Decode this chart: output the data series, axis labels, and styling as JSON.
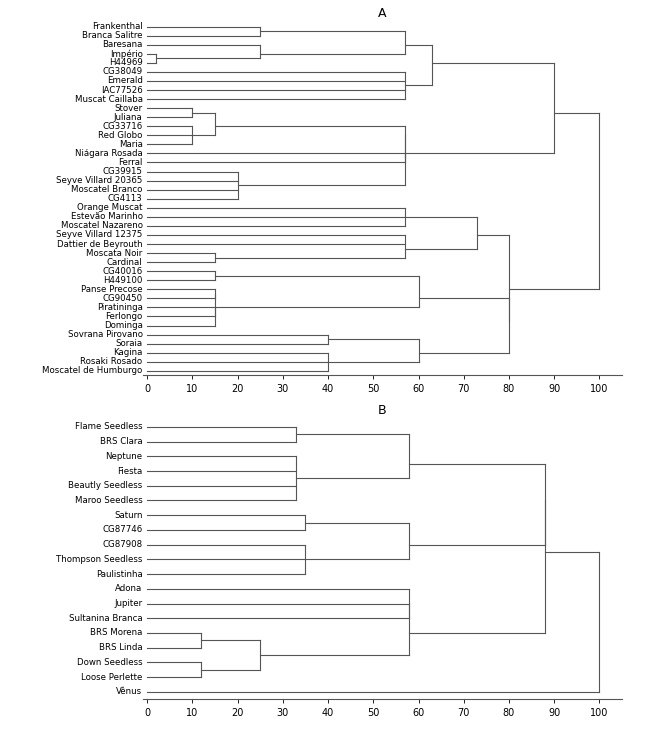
{
  "title_A": "A",
  "title_B": "B",
  "figsize": [
    6.48,
    7.36
  ],
  "dpi": 100,
  "taxa_A": [
    "Frankenthal",
    "Branca Salitre",
    "Baresana",
    "Império",
    "H44969",
    "CG38049",
    "Emerald",
    "IAC77526",
    "Muscat Caillaba",
    "Stover",
    "Juliana",
    "CG33716",
    "Red Globo",
    "Maria",
    "Niágara Rosada",
    "Ferral",
    "CG39915",
    "Seyve Villard 20365",
    "Moscatel Branco",
    "CG4113",
    "Orange Muscat",
    "Estevão Marinho",
    "Moscatel Nazareno",
    "Seyve Villard 12375",
    "Dattier de Beyrouth",
    "Moscata Noir",
    "Cardinal",
    "CG40016",
    "H449100",
    "Panse Precose",
    "CG90450",
    "Piratininga",
    "Ferlongo",
    "Dominga",
    "Sovrana Pirovano",
    "Soraia",
    "Kagina",
    "Rosaki Rosado",
    "Moscatel de Humburgo"
  ],
  "taxa_B": [
    "Flame Seedless",
    "BRS Clara",
    "Neptune",
    "Fiesta",
    "Beautly Seedless",
    "Maroo Seedless",
    "Saturn",
    "CG87746",
    "CG87908",
    "Thompson Seedless",
    "Paulistinha",
    "Adona",
    "Jupiter",
    "Sultanina Branca",
    "BRS Morena",
    "BRS Linda",
    "Down Seedless",
    "Loose Perlette",
    "Vênus"
  ],
  "line_color": "#555555",
  "label_fontsize": 6.2,
  "axis_fontsize": 7.0,
  "title_fontsize": 9,
  "bg_color": "#ffffff"
}
